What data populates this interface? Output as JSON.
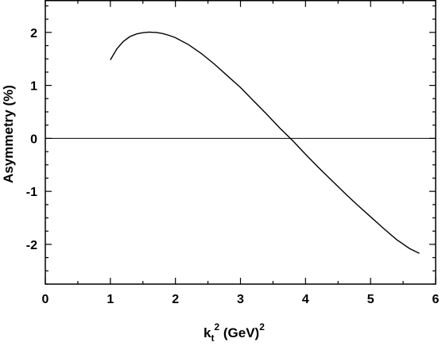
{
  "chart_data": {
    "type": "line",
    "title": "",
    "xlabel": {
      "base": "k",
      "sub": "t",
      "sup": "2",
      "unit": " (GeV)",
      "unit_sup": "2"
    },
    "ylabel": "Asymmetry (%)",
    "xlim": [
      0,
      6
    ],
    "ylim": [
      -2.75,
      2.6
    ],
    "x_ticks": [
      0,
      1,
      2,
      3,
      4,
      5,
      6
    ],
    "x_tick_labels": [
      "0",
      "1",
      "2",
      "3",
      "4",
      "5",
      "6"
    ],
    "y_ticks": [
      -2,
      -1,
      0,
      1,
      2
    ],
    "y_tick_labels": [
      "-2",
      "-1",
      "0",
      "1",
      "2"
    ],
    "grid": false,
    "legend": "none",
    "reference_lines": [
      {
        "axis": "y",
        "value": 0
      }
    ],
    "series": [
      {
        "x": [
          1.0,
          1.1,
          1.2,
          1.3,
          1.4,
          1.5,
          1.6,
          1.65,
          1.7,
          1.8,
          1.9,
          2.0,
          2.2,
          2.4,
          2.6,
          2.8,
          3.0,
          3.2,
          3.4,
          3.6,
          3.8,
          4.0,
          4.2,
          4.4,
          4.6,
          4.8,
          5.0,
          5.2,
          5.4,
          5.6,
          5.75
        ],
        "y": [
          1.48,
          1.69,
          1.83,
          1.92,
          1.97,
          1.995,
          2.005,
          2.0,
          2.0,
          1.98,
          1.945,
          1.9,
          1.77,
          1.6,
          1.4,
          1.18,
          0.96,
          0.71,
          0.46,
          0.2,
          -0.04,
          -0.3,
          -0.55,
          -0.79,
          -1.03,
          -1.26,
          -1.48,
          -1.7,
          -1.91,
          -2.08,
          -2.17
        ],
        "color": "#000000"
      }
    ]
  }
}
